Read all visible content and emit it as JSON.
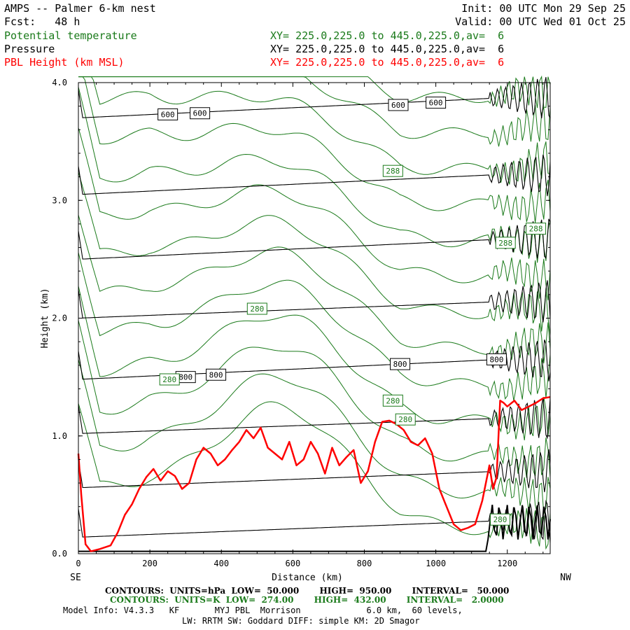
{
  "header": {
    "title": "AMPS -- Palmer 6-km nest",
    "init": "Init: 00 UTC Mon 29 Sep 25",
    "fcst": "Fcst:   48 h",
    "valid": "Valid: 00 UTC Wed 01 Oct 25"
  },
  "fields": [
    {
      "name": "Potential temperature",
      "xy": "XY= 225.0,225.0 to 445.0,225.0,av=  6",
      "color": "#1a7a1a"
    },
    {
      "name": "Pressure",
      "xy": "XY= 225.0,225.0 to 445.0,225.0,av=  6",
      "color": "#000000"
    },
    {
      "name": "PBL Height (km MSL)",
      "xy": "XY= 225.0,225.0 to 445.0,225.0,av=  6",
      "color": "#ff0000"
    }
  ],
  "footer": {
    "line1": "CONTOURS:  UNITS=hPa  LOW=  50.000       HIGH=  950.00       INTERVAL=   50.000",
    "line2": "CONTOURS:  UNITS=K  LOW=  274.00       HIGH=  432.00       INTERVAL=   2.0000",
    "line3": "Model Info: V4.3.3   KF       MYJ PBL  Morrison             6.0 km,  60 levels,",
    "line4": "LW: RRTM SW: Goddard DIFF: simple KM: 2D Smagor"
  },
  "chart_data": {
    "type": "line",
    "xlabel": "Distance (km)",
    "ylabel": "Height (km)",
    "xlim": [
      0,
      1320
    ],
    "ylim": [
      0,
      4
    ],
    "x_ticks": [
      "0",
      "200",
      "400",
      "600",
      "800",
      "1000",
      "1200"
    ],
    "y_ticks": [
      "0.0",
      "1.0",
      "2.0",
      "3.0",
      "4.0"
    ],
    "left_end_label": "SE",
    "right_end_label": "NW",
    "pbl_height": {
      "name": "PBL Height (km MSL)",
      "color": "#ff0000",
      "x": [
        0,
        8,
        20,
        35,
        60,
        90,
        110,
        130,
        150,
        170,
        190,
        210,
        230,
        250,
        270,
        290,
        310,
        330,
        350,
        370,
        390,
        410,
        430,
        450,
        470,
        490,
        510,
        530,
        550,
        570,
        590,
        610,
        630,
        650,
        670,
        690,
        710,
        730,
        750,
        770,
        790,
        810,
        830,
        850,
        870,
        890,
        910,
        930,
        950,
        970,
        990,
        1010,
        1030,
        1050,
        1070,
        1090,
        1110,
        1130,
        1150,
        1160,
        1170,
        1180,
        1190,
        1200,
        1220,
        1240,
        1260,
        1280,
        1300,
        1320
      ],
      "y": [
        0.85,
        0.5,
        0.08,
        0.02,
        0.04,
        0.07,
        0.18,
        0.33,
        0.42,
        0.55,
        0.65,
        0.72,
        0.62,
        0.7,
        0.66,
        0.55,
        0.6,
        0.8,
        0.9,
        0.85,
        0.75,
        0.8,
        0.88,
        0.95,
        1.05,
        0.98,
        1.07,
        0.9,
        0.85,
        0.8,
        0.95,
        0.75,
        0.8,
        0.95,
        0.85,
        0.68,
        0.9,
        0.75,
        0.82,
        0.88,
        0.6,
        0.7,
        0.95,
        1.12,
        1.13,
        1.1,
        1.05,
        0.95,
        0.92,
        0.98,
        0.85,
        0.55,
        0.4,
        0.25,
        0.2,
        0.22,
        0.25,
        0.45,
        0.75,
        0.55,
        0.65,
        1.3,
        1.28,
        1.25,
        1.3,
        1.22,
        1.25,
        1.28,
        1.32,
        1.33
      ]
    },
    "pressure_contours": {
      "color": "#000000",
      "levels_hpa": [
        600,
        650,
        700,
        750,
        800,
        850,
        900,
        950
      ],
      "label_values": [
        "600",
        "800"
      ],
      "heights_km": [
        {
          "x": [
            0,
            1180
          ],
          "y": [
            3.7,
            3.87
          ]
        },
        {
          "x": [
            0,
            1180
          ],
          "y": [
            3.05,
            3.22
          ]
        },
        {
          "x": [
            0,
            1180
          ],
          "y": [
            2.5,
            2.67
          ]
        },
        {
          "x": [
            0,
            1180
          ],
          "y": [
            2.0,
            2.14
          ]
        },
        {
          "x": [
            0,
            1180
          ],
          "y": [
            1.48,
            1.65
          ]
        },
        {
          "x": [
            0,
            1180
          ],
          "y": [
            1.02,
            1.15
          ]
        },
        {
          "x": [
            0,
            1180
          ],
          "y": [
            0.56,
            0.7
          ]
        },
        {
          "x": [
            0,
            1180
          ],
          "y": [
            0.14,
            0.28
          ]
        }
      ]
    },
    "theta_contours": {
      "color": "#1a7a1a",
      "label_values": [
        "280",
        "288"
      ]
    }
  }
}
